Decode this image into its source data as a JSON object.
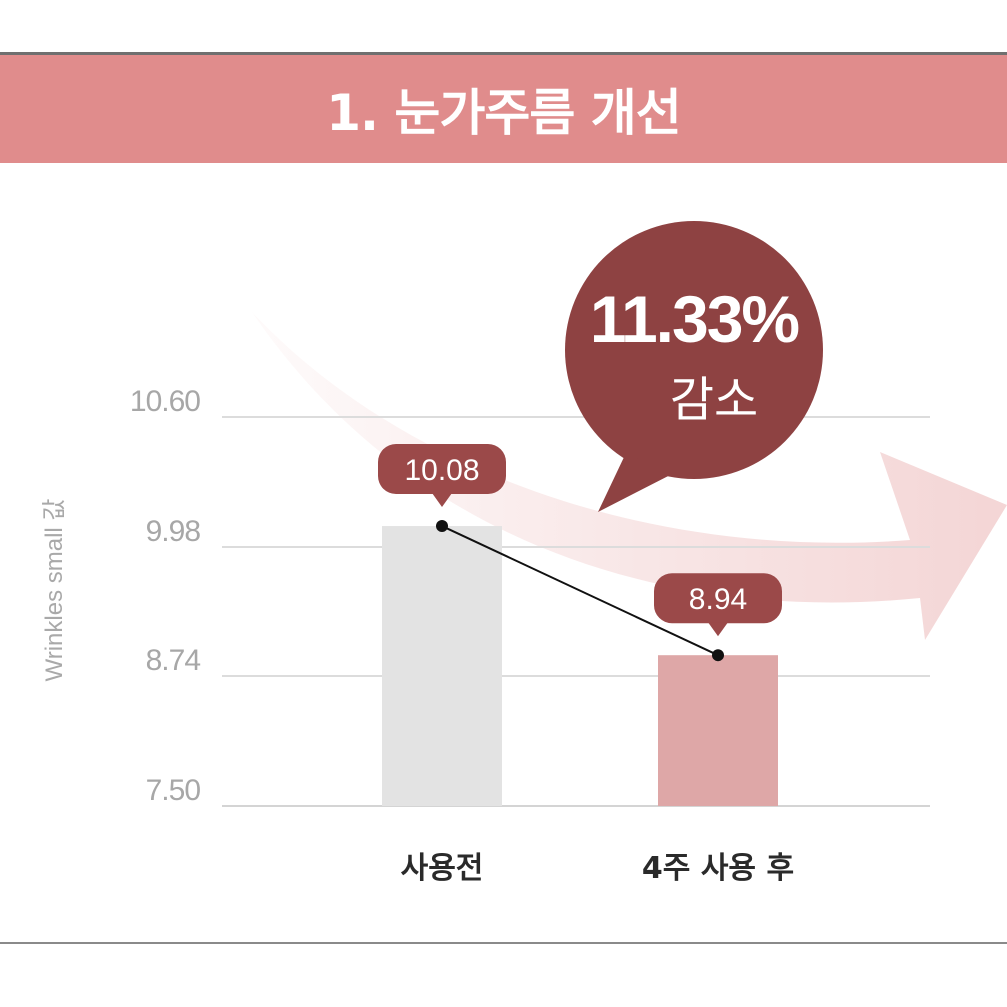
{
  "title": "1. 눈가주름 개선",
  "colors": {
    "banner": "#e08c8c",
    "bar_before": "#e3e3e3",
    "bar_after": "#dea7a7",
    "label_bubble": "#9b4949",
    "callout": "#8e4242",
    "arrow": "#f3d3d3"
  },
  "callout": {
    "percent": "11.33%",
    "text": "감소"
  },
  "chart_data": {
    "type": "bar",
    "ylabel": "Wrinkles small 값",
    "y_ticks": [
      "10.60",
      "9.98",
      "8.74",
      "7.50"
    ],
    "categories": [
      "사용전",
      "4주 사용 후"
    ],
    "values": [
      10.08,
      8.94
    ],
    "data_labels": [
      "10.08",
      "8.94"
    ],
    "line_overlay": true,
    "grid": true
  }
}
